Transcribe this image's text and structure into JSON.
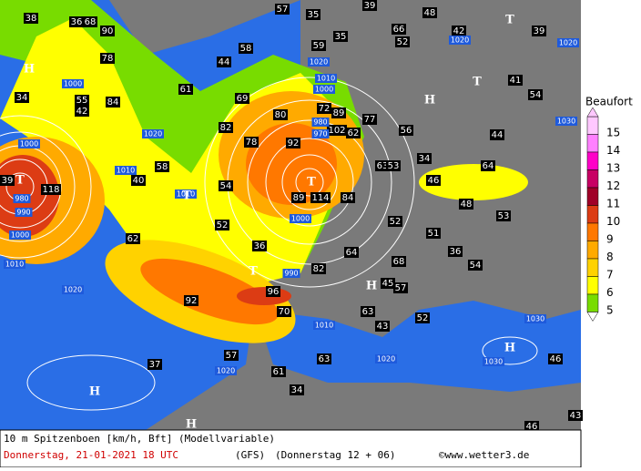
{
  "title": "10 m Spitzenboen [km/h, Bft] (Modellvariable)",
  "date": "Donnerstag, 21-01-2021  18 UTC",
  "model": "(GFS)",
  "run": "(Donnerstag 12 + 06)",
  "credit": "©www.wetter3.de",
  "legend": {
    "title": "Beaufort",
    "levels": [
      {
        "label": 15,
        "color": "#ffc8ff"
      },
      {
        "label": 14,
        "color": "#ff80ff"
      },
      {
        "label": 13,
        "color": "#ff00c8"
      },
      {
        "label": 12,
        "color": "#c80064"
      },
      {
        "label": 11,
        "color": "#a00028"
      },
      {
        "label": 10,
        "color": "#dc3c14"
      },
      {
        "label": 9,
        "color": "#ff7800"
      },
      {
        "label": 8,
        "color": "#ffaa00"
      },
      {
        "label": 7,
        "color": "#ffd200"
      },
      {
        "label": 6,
        "color": "#ffff00"
      },
      {
        "label": 5,
        "color": "#78dc00"
      }
    ]
  },
  "gust_labels": [
    38,
    36,
    68,
    90,
    78,
    84,
    55,
    42,
    34,
    39,
    118,
    58,
    40,
    62,
    52,
    54,
    36,
    92,
    96,
    70,
    57,
    61,
    37,
    34,
    63,
    63,
    43,
    52,
    57,
    45,
    68,
    64,
    82,
    51,
    36,
    54,
    52,
    48,
    53,
    46,
    64,
    44,
    34,
    56,
    63,
    53,
    84,
    114,
    89,
    92,
    80,
    78,
    82,
    69,
    61,
    44,
    58,
    57,
    35,
    59,
    35,
    39,
    48,
    42,
    66,
    52,
    39,
    41,
    54,
    102,
    62,
    77,
    72,
    89,
    46,
    43,
    46
  ],
  "pressure_labels": [
    1000,
    980,
    990,
    1000,
    1010,
    1010,
    1020,
    1020,
    1010,
    1000,
    980,
    970,
    990,
    1010,
    1020,
    1030,
    1030,
    1020,
    1000,
    1020,
    1030,
    1020,
    1020,
    1000,
    1010
  ],
  "centers": [
    "H",
    "H",
    "T",
    "T",
    "T",
    "T",
    "T",
    "T",
    "H",
    "H",
    "H",
    "H"
  ]
}
